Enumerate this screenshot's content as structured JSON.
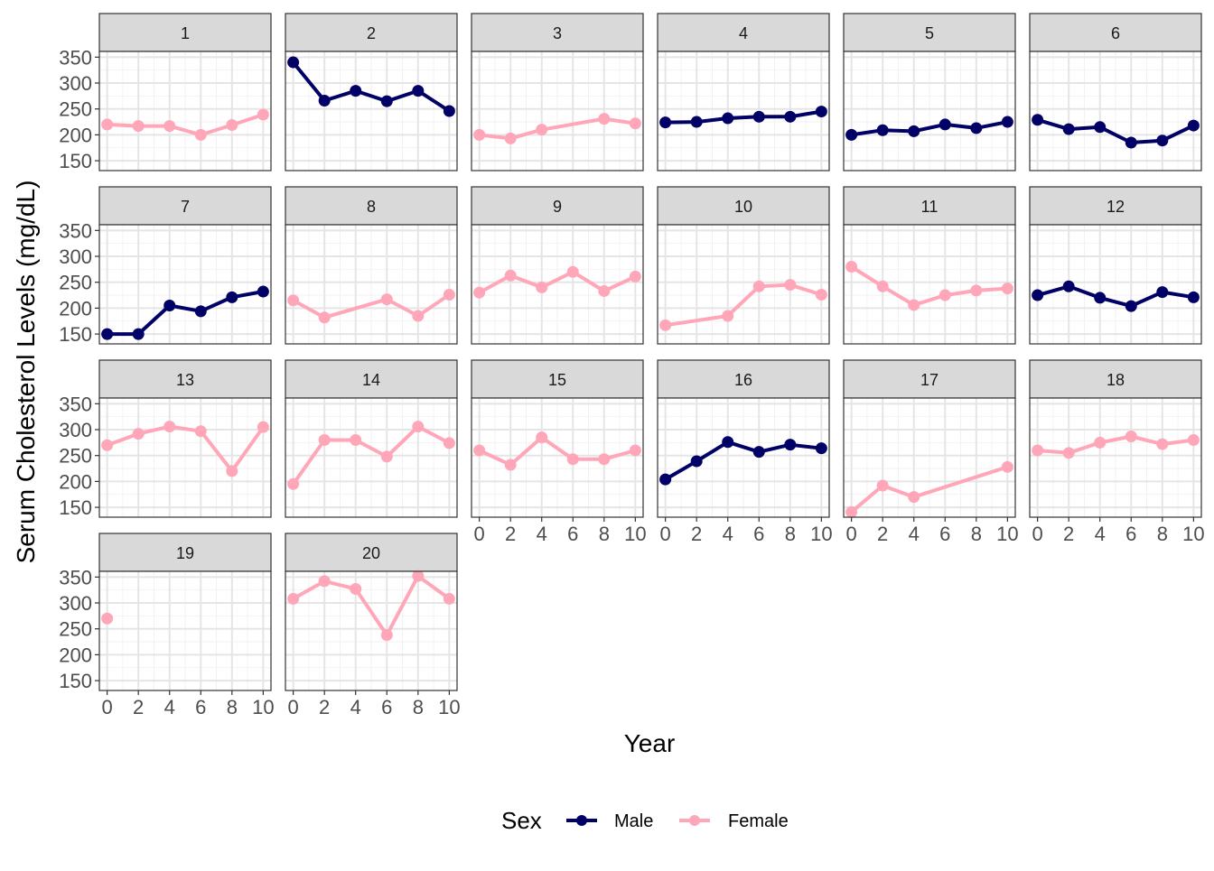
{
  "chart_data": {
    "type": "line",
    "facet_by": "subject",
    "facets": [
      {
        "label": "1",
        "sex": "Female",
        "x": [
          0,
          2,
          4,
          6,
          8,
          10
        ],
        "y": [
          220,
          217,
          217,
          200,
          219,
          239
        ]
      },
      {
        "label": "2",
        "sex": "Male",
        "x": [
          0,
          2,
          4,
          6,
          8,
          10
        ],
        "y": [
          340,
          266,
          285,
          265,
          285,
          246
        ]
      },
      {
        "label": "3",
        "sex": "Female",
        "x": [
          0,
          2,
          4,
          8,
          10
        ],
        "y": [
          200,
          193,
          210,
          231,
          222
        ]
      },
      {
        "label": "4",
        "sex": "Male",
        "x": [
          0,
          2,
          4,
          6,
          8,
          10
        ],
        "y": [
          224,
          225,
          232,
          235,
          235,
          245
        ]
      },
      {
        "label": "5",
        "sex": "Male",
        "x": [
          0,
          2,
          4,
          6,
          8,
          10
        ],
        "y": [
          200,
          209,
          207,
          220,
          213,
          225
        ]
      },
      {
        "label": "6",
        "sex": "Male",
        "x": [
          0,
          2,
          4,
          6,
          8,
          10
        ],
        "y": [
          229,
          211,
          215,
          185,
          189,
          218
        ]
      },
      {
        "label": "7",
        "sex": "Male",
        "x": [
          0,
          2,
          4,
          6,
          8,
          10
        ],
        "y": [
          150,
          150,
          205,
          194,
          221,
          232
        ]
      },
      {
        "label": "8",
        "sex": "Female",
        "x": [
          0,
          2,
          6,
          8,
          10
        ],
        "y": [
          215,
          182,
          217,
          185,
          226
        ]
      },
      {
        "label": "9",
        "sex": "Female",
        "x": [
          0,
          2,
          4,
          6,
          8,
          10
        ],
        "y": [
          230,
          263,
          240,
          270,
          233,
          261
        ]
      },
      {
        "label": "10",
        "sex": "Female",
        "x": [
          0,
          4,
          6,
          8,
          10
        ],
        "y": [
          167,
          185,
          242,
          245,
          226
        ]
      },
      {
        "label": "11",
        "sex": "Female",
        "x": [
          0,
          2,
          4,
          6,
          8,
          10
        ],
        "y": [
          280,
          242,
          206,
          225,
          234,
          238
        ]
      },
      {
        "label": "12",
        "sex": "Male",
        "x": [
          0,
          2,
          4,
          6,
          8,
          10
        ],
        "y": [
          225,
          242,
          220,
          204,
          231,
          221
        ]
      },
      {
        "label": "13",
        "sex": "Female",
        "x": [
          0,
          2,
          4,
          6,
          8,
          10
        ],
        "y": [
          270,
          292,
          306,
          297,
          220,
          305
        ]
      },
      {
        "label": "14",
        "sex": "Female",
        "x": [
          0,
          2,
          4,
          6,
          8,
          10
        ],
        "y": [
          195,
          280,
          280,
          248,
          306,
          274
        ]
      },
      {
        "label": "15",
        "sex": "Female",
        "x": [
          0,
          2,
          4,
          6,
          8,
          10
        ],
        "y": [
          260,
          232,
          285,
          243,
          243,
          260
        ]
      },
      {
        "label": "16",
        "sex": "Male",
        "x": [
          0,
          2,
          4,
          6,
          8,
          10
        ],
        "y": [
          204,
          239,
          276,
          257,
          271,
          264
        ]
      },
      {
        "label": "17",
        "sex": "Female",
        "x": [
          0,
          2,
          4,
          10
        ],
        "y": [
          141,
          192,
          170,
          228
        ]
      },
      {
        "label": "18",
        "sex": "Female",
        "x": [
          0,
          2,
          4,
          6,
          8,
          10
        ],
        "y": [
          260,
          255,
          275,
          287,
          272,
          280
        ]
      },
      {
        "label": "19",
        "sex": "Female",
        "x": [
          0
        ],
        "y": [
          270
        ]
      },
      {
        "label": "20",
        "sex": "Female",
        "x": [
          0,
          2,
          4,
          6,
          8,
          10
        ],
        "y": [
          308,
          342,
          327,
          238,
          352,
          308
        ]
      }
    ],
    "xlabel": "Year",
    "ylabel": "Serum Cholesterol Levels (mg/dL)",
    "x_ticks": [
      "0",
      "2",
      "4",
      "6",
      "8",
      "10"
    ],
    "y_ticks": [
      "150",
      "200",
      "250",
      "300",
      "350"
    ],
    "xlim": [
      -0.5,
      10.5
    ],
    "ylim": [
      131,
      361
    ],
    "grid": true,
    "legend": {
      "title": "Sex",
      "position": "bottom",
      "entries": [
        {
          "name": "Male",
          "color": "#000066"
        },
        {
          "name": "Female",
          "color": "#FFA6B8"
        }
      ]
    }
  }
}
